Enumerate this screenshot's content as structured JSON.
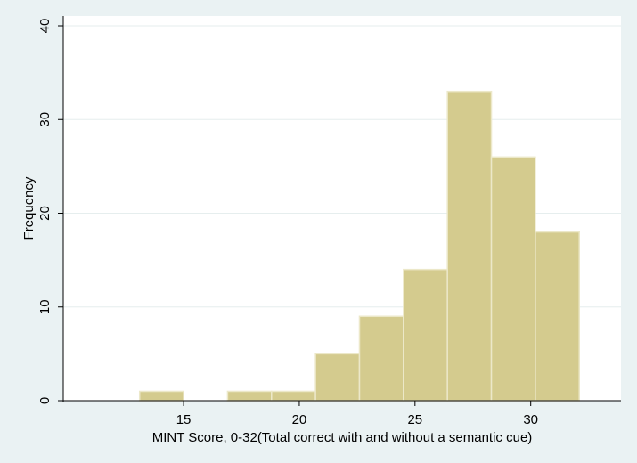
{
  "chart_data": {
    "type": "histogram",
    "title": "",
    "xlabel": "MINT Score, 0-32(Total correct with and without a semantic cue)",
    "ylabel": "Frequency",
    "bins": [
      {
        "start": 13.1,
        "end": 15.0,
        "count": 1
      },
      {
        "start": 15.0,
        "end": 16.9,
        "count": 0
      },
      {
        "start": 16.9,
        "end": 18.8,
        "count": 1
      },
      {
        "start": 18.8,
        "end": 20.7,
        "count": 1
      },
      {
        "start": 20.7,
        "end": 22.6,
        "count": 5
      },
      {
        "start": 22.6,
        "end": 24.5,
        "count": 9
      },
      {
        "start": 24.5,
        "end": 26.4,
        "count": 14
      },
      {
        "start": 26.4,
        "end": 28.3,
        "count": 33
      },
      {
        "start": 28.3,
        "end": 30.2,
        "count": 26
      },
      {
        "start": 30.2,
        "end": 32.1,
        "count": 18
      }
    ],
    "xlim": [
      9.8,
      33.9
    ],
    "ylim": [
      0,
      40
    ],
    "xticks": [
      15,
      20,
      25,
      30
    ],
    "yticks": [
      0,
      10,
      20,
      30,
      40
    ],
    "grid": true,
    "bar_color": "#d4cb8e",
    "bar_edge_color": "#ece8c9",
    "plot_background": "#ffffff",
    "outer_background": "#eaf2f3"
  }
}
